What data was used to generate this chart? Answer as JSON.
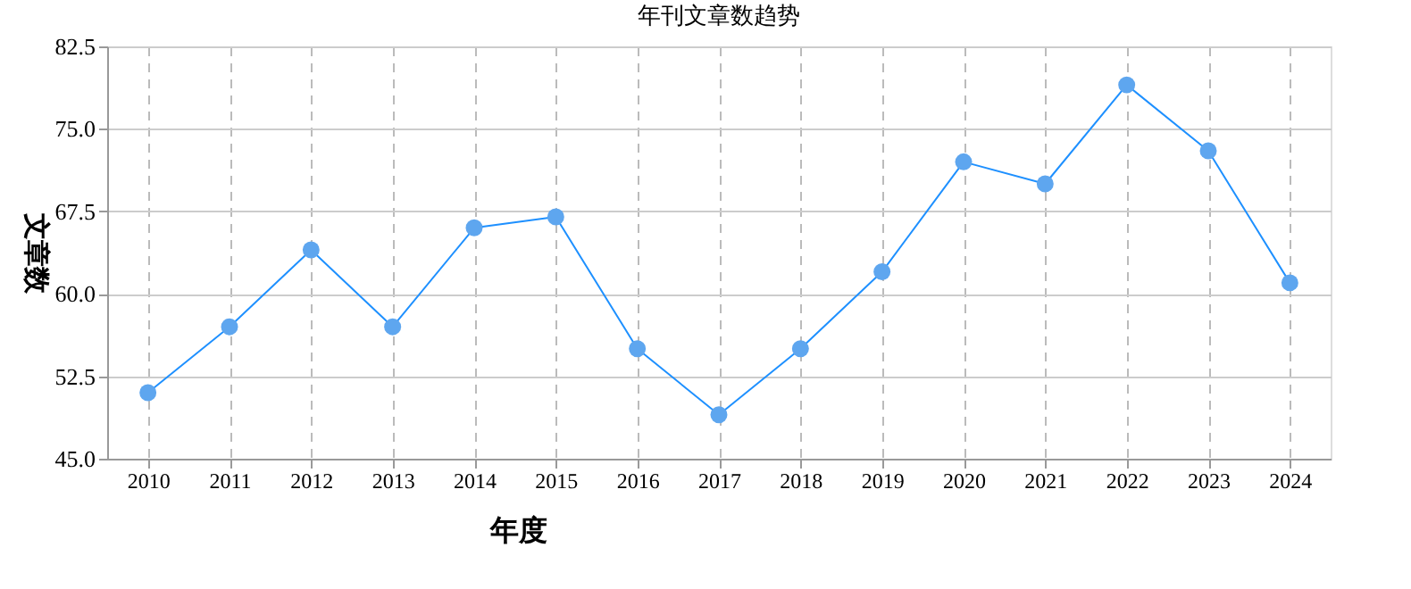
{
  "chart_data": {
    "type": "line",
    "title": "年刊文章数趋势",
    "xlabel": "年度",
    "ylabel": "文章数",
    "categories": [
      "2010",
      "2011",
      "2012",
      "2013",
      "2014",
      "2015",
      "2016",
      "2017",
      "2018",
      "2019",
      "2020",
      "2021",
      "2022",
      "2023",
      "2024"
    ],
    "series": [
      {
        "color": "#1e90ff",
        "values": [
          51,
          57,
          64,
          57,
          66,
          67,
          55,
          49,
          55,
          62,
          72,
          70,
          79,
          73,
          61
        ]
      }
    ],
    "ylim": [
      45,
      82.5
    ],
    "yticks": [
      {
        "value": 45,
        "label": "45.0"
      },
      {
        "value": 52.5,
        "label": "52.5"
      },
      {
        "value": 60,
        "label": "60.0"
      },
      {
        "value": 67.5,
        "label": "67.5"
      },
      {
        "value": 75,
        "label": "75.0"
      },
      {
        "value": 82.5,
        "label": "82.5"
      }
    ],
    "grid": true,
    "marker": "circle",
    "line_style": "solid"
  }
}
